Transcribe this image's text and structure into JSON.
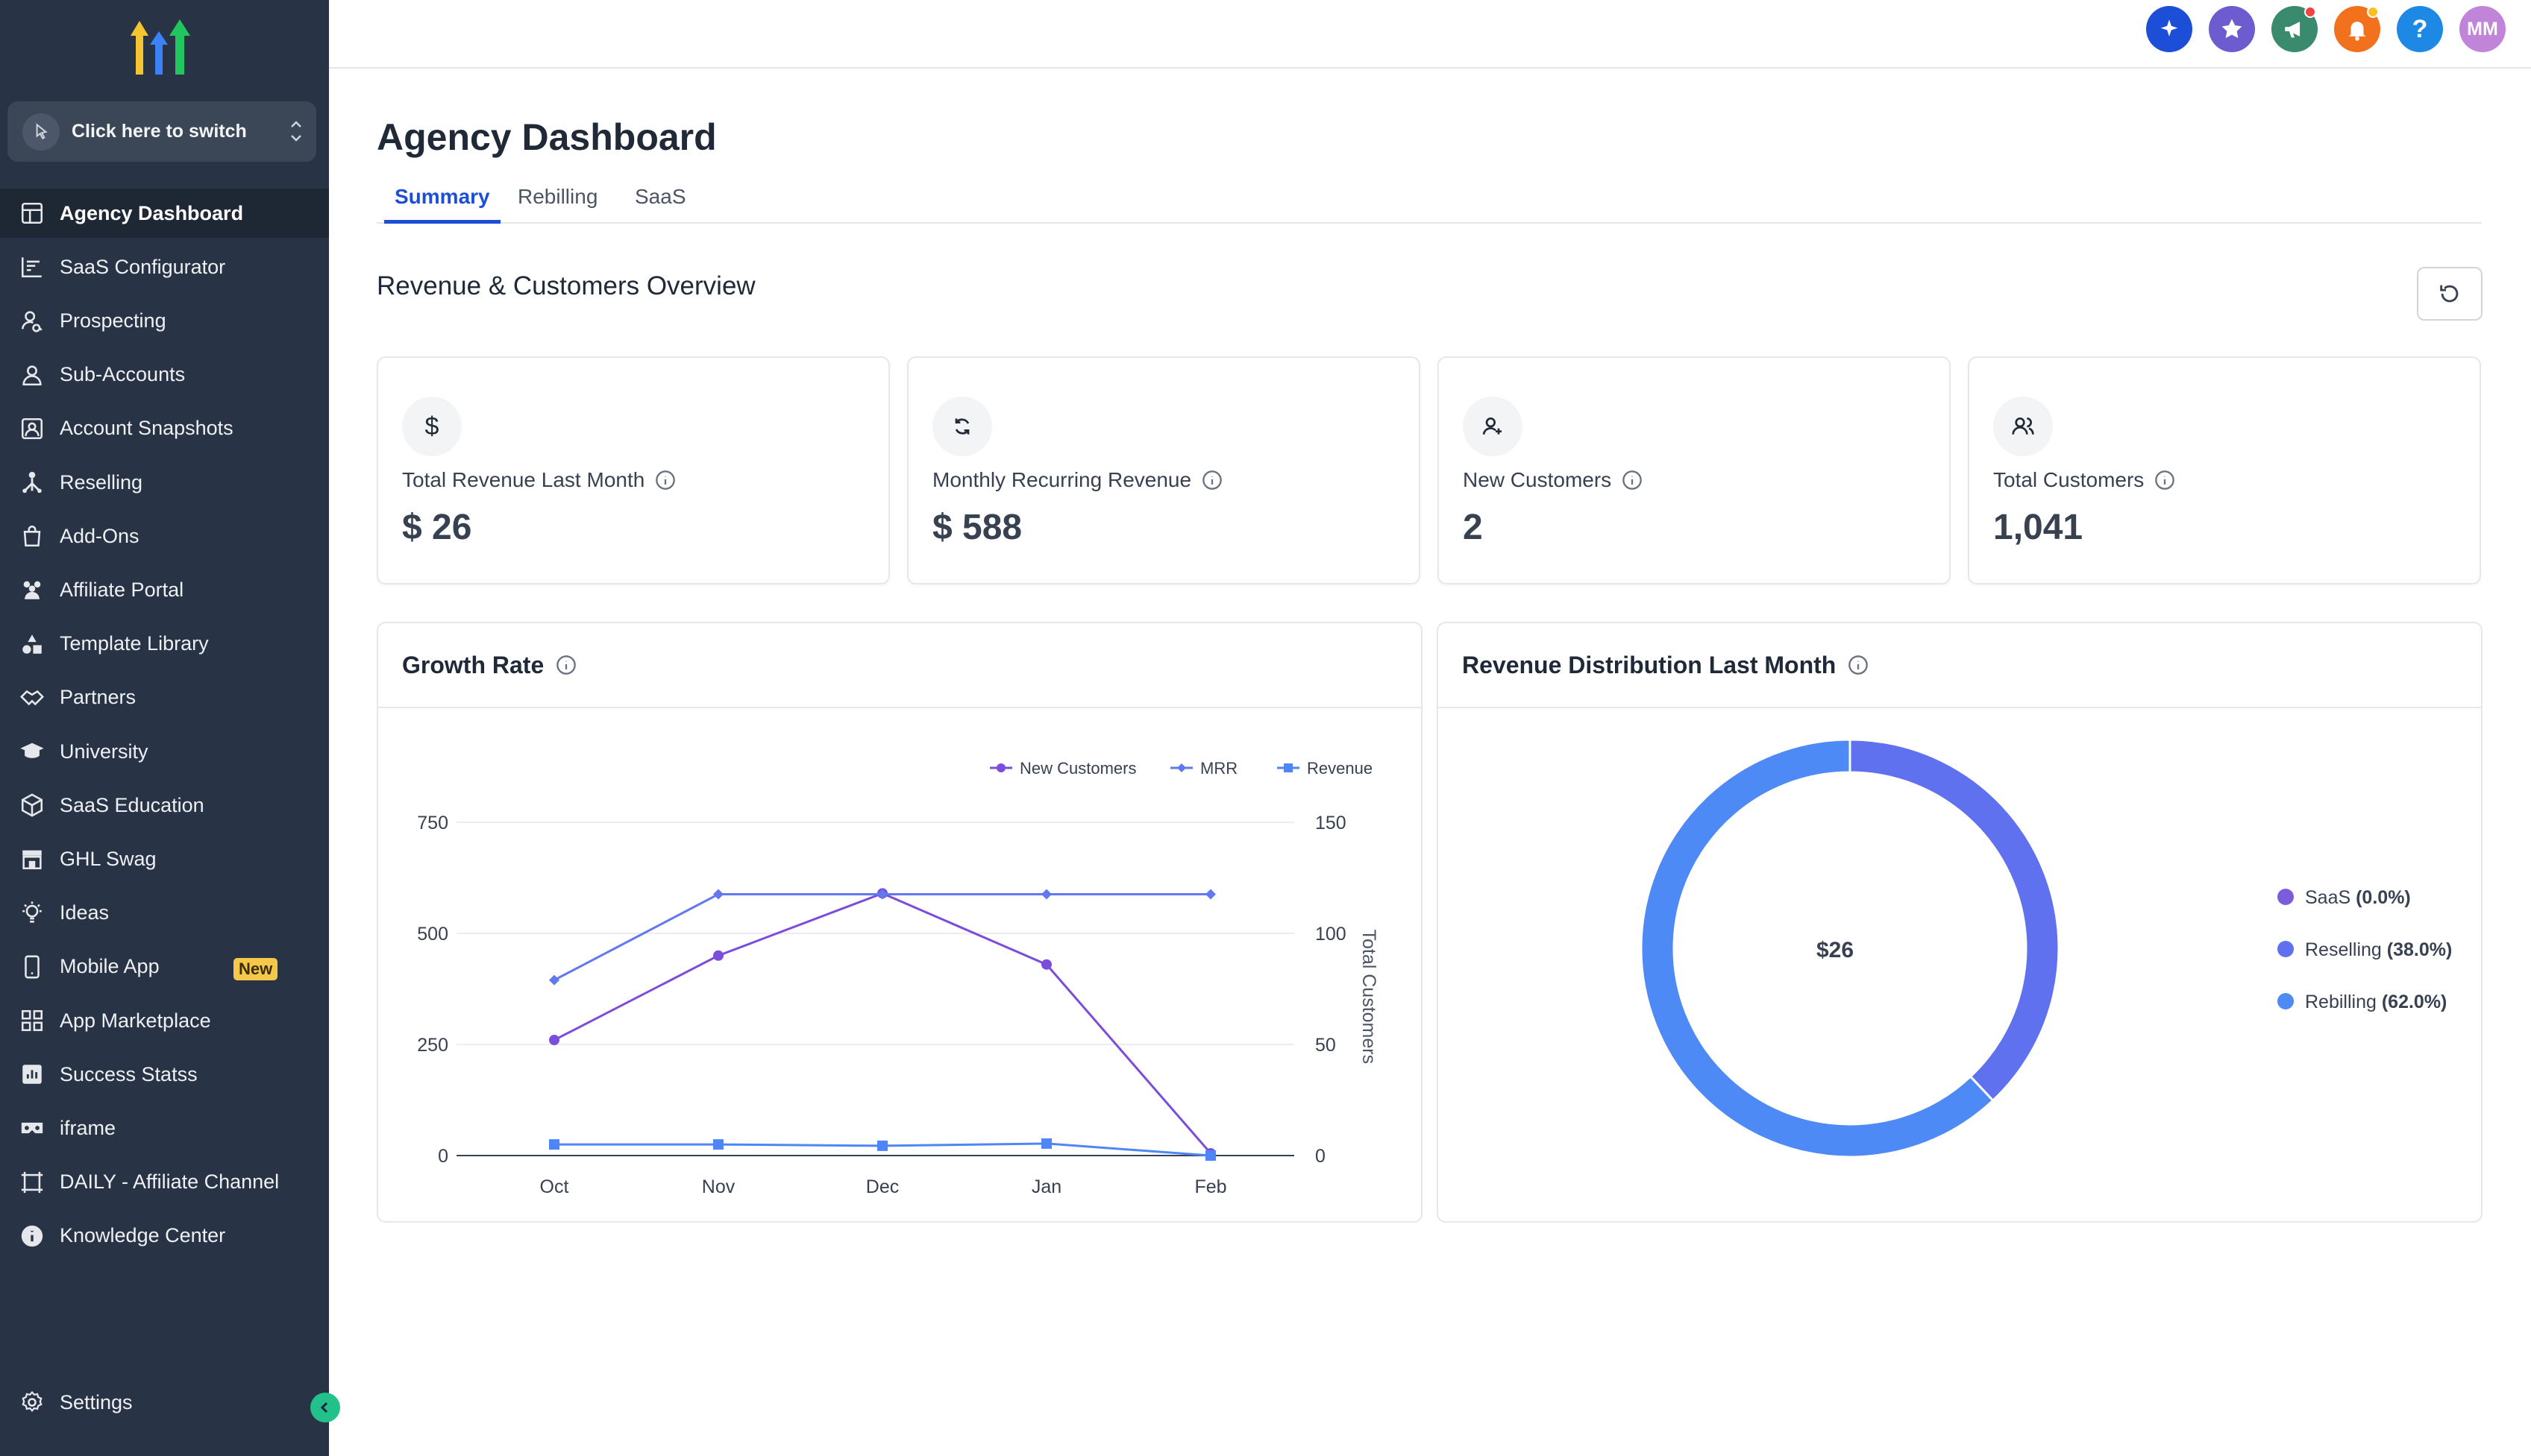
{
  "sidebar": {
    "switcher_label": "Click here to switch",
    "items": [
      {
        "label": "Agency Dashboard",
        "icon": "dashboard-icon",
        "active": true
      },
      {
        "label": "SaaS Configurator",
        "icon": "configurator-icon"
      },
      {
        "label": "Prospecting",
        "icon": "prospecting-icon"
      },
      {
        "label": "Sub-Accounts",
        "icon": "user-icon"
      },
      {
        "label": "Account Snapshots",
        "icon": "snapshot-icon"
      },
      {
        "label": "Reselling",
        "icon": "reselling-icon"
      },
      {
        "label": "Add-Ons",
        "icon": "bag-icon"
      },
      {
        "label": "Affiliate Portal",
        "icon": "people-icon"
      },
      {
        "label": "Template Library",
        "icon": "shapes-icon"
      },
      {
        "label": "Partners",
        "icon": "handshake-icon"
      },
      {
        "label": "University",
        "icon": "graduation-cap-icon"
      },
      {
        "label": "SaaS Education",
        "icon": "box-icon"
      },
      {
        "label": "GHL Swag",
        "icon": "store-icon"
      },
      {
        "label": "Ideas",
        "icon": "lightbulb-icon"
      },
      {
        "label": "Mobile App",
        "icon": "mobile-icon",
        "badge": "New"
      },
      {
        "label": "App Marketplace",
        "icon": "grid-icon"
      },
      {
        "label": "Success Statss",
        "icon": "stats-icon"
      },
      {
        "label": "iframe",
        "icon": "vr-icon"
      },
      {
        "label": "DAILY - Affiliate Channel",
        "icon": "frame-icon"
      },
      {
        "label": "Knowledge Center",
        "icon": "info-circle-icon"
      }
    ],
    "settings_label": "Settings"
  },
  "topbar": {
    "icons": [
      {
        "name": "sparkle-icon",
        "color": "#1d4ed8"
      },
      {
        "name": "star-icon",
        "color": "#6d5bd0"
      },
      {
        "name": "megaphone-icon",
        "color": "#3a8a6e"
      },
      {
        "name": "bell-icon",
        "color": "#f2711c"
      },
      {
        "name": "help-icon",
        "color": "#1e88e5"
      }
    ],
    "avatar_initials": "MM",
    "avatar_color": "#c084d8"
  },
  "page": {
    "title": "Agency Dashboard",
    "tabs": [
      "Summary",
      "Rebilling",
      "SaaS"
    ],
    "active_tab": "Summary",
    "section_title": "Revenue & Customers Overview"
  },
  "kpis": [
    {
      "label": "Total Revenue Last Month",
      "value": "$ 26",
      "icon": "dollar-icon"
    },
    {
      "label": "Monthly Recurring Revenue",
      "value": "$ 588",
      "icon": "recurring-icon"
    },
    {
      "label": "New Customers",
      "value": "2",
      "icon": "user-plus-icon"
    },
    {
      "label": "Total Customers",
      "value": "1,041",
      "icon": "users-icon"
    }
  ],
  "growth_panel": {
    "title": "Growth Rate"
  },
  "distribution_panel": {
    "title": "Revenue Distribution Last Month"
  },
  "chart_data": [
    {
      "type": "line",
      "x": [
        "Oct",
        "Nov",
        "Dec",
        "Jan",
        "Feb"
      ],
      "series": [
        {
          "name": "New Customers",
          "axis": "right",
          "values": [
            52,
            90,
            118,
            86,
            1
          ],
          "color": "#7c4ddb",
          "marker": "circle"
        },
        {
          "name": "MRR",
          "axis": "left",
          "values": [
            395,
            588,
            588,
            588,
            588
          ],
          "color": "#6278ee",
          "marker": "diamond"
        },
        {
          "name": "Revenue",
          "axis": "left",
          "values": [
            25,
            25,
            22,
            27,
            0
          ],
          "color": "#4f86f7",
          "marker": "square"
        }
      ],
      "yticks_left": [
        "0",
        "250",
        "500",
        "750"
      ],
      "ylim_left": [
        0,
        750
      ],
      "yticks_right": [
        "0",
        "50",
        "100",
        "150"
      ],
      "ylim_right": [
        0,
        150
      ],
      "ylabel_right": "Total Customers",
      "legend": "top-right",
      "grid": true
    },
    {
      "type": "pie",
      "donut": true,
      "center_label": "$26",
      "slices": [
        {
          "label": "SaaS",
          "pct_label": "(0.0%)",
          "value": 0.0,
          "color": "#7b5cdc"
        },
        {
          "label": "Reselling",
          "pct_label": "(38.0%)",
          "value": 38.0,
          "color": "#5f71ee"
        },
        {
          "label": "Rebilling",
          "pct_label": "(62.0%)",
          "value": 62.0,
          "color": "#4d8af5"
        }
      ],
      "legend": "right"
    }
  ]
}
